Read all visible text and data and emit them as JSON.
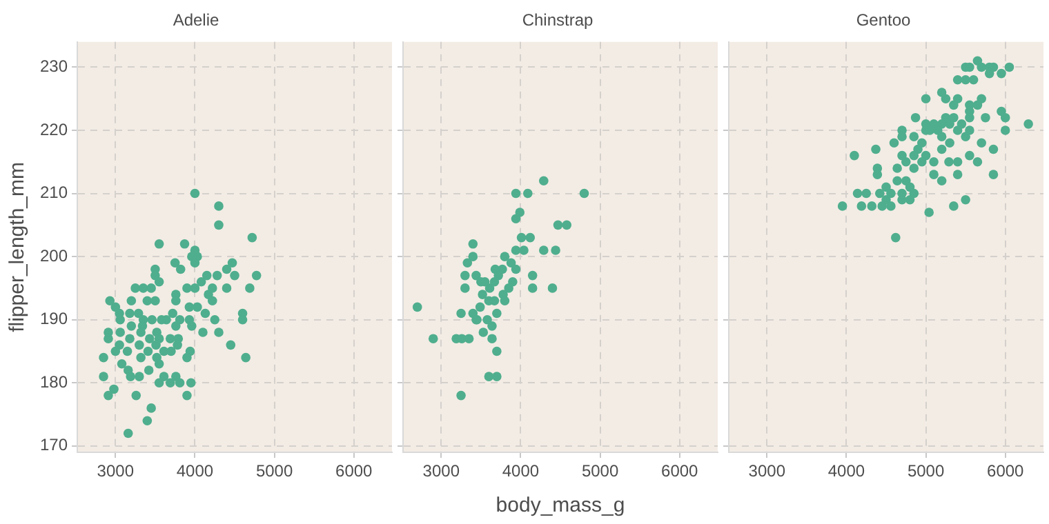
{
  "chart_data": [
    {
      "type": "scatter",
      "title": "Adelie",
      "ylabel": "flipper_length_mm",
      "xlim": [
        2520,
        6480
      ],
      "ylim": [
        169,
        234
      ],
      "xticks": [
        3000,
        4000,
        5000,
        6000
      ],
      "yticks": [
        170,
        180,
        190,
        200,
        210,
        220,
        230
      ],
      "grid": true,
      "marker": "circle",
      "color": "#4fae8e",
      "x": [
        4000,
        4300,
        4300,
        4720,
        3550,
        3870,
        4000,
        4030,
        3960,
        4000,
        3750,
        3820,
        3500,
        4470,
        4400,
        4775,
        4500,
        4150,
        4280,
        4690,
        3550,
        3500,
        4000,
        3900,
        4400,
        4220,
        3250,
        3350,
        3450,
        4080,
        4170,
        3760,
        4220,
        3400,
        3500,
        3200,
        2930,
        3000,
        3760,
        3930,
        4030,
        3050,
        3180,
        3290,
        3640,
        3720,
        3810,
        3930,
        4250,
        4600,
        4600,
        4130,
        3060,
        3350,
        3580,
        3460,
        3200,
        3340,
        3760,
        3960,
        2910,
        3060,
        3320,
        3520,
        4100,
        4300,
        2910,
        3180,
        3430,
        3550,
        3690,
        3790,
        3050,
        3300,
        3510,
        3780,
        4450,
        3000,
        3150,
        3410,
        3610,
        3700,
        3940,
        2850,
        3320,
        3520,
        3900,
        4640,
        3080,
        3550,
        3160,
        3420,
        3190,
        2850,
        3300,
        3610,
        3760,
        3550,
        3690,
        3810,
        3950,
        2980,
        2910,
        3260,
        3900,
        3450,
        3400,
        3160
      ],
      "values": [
        210,
        208,
        205,
        203,
        202,
        202,
        201,
        200,
        200,
        199,
        199,
        198,
        198,
        199,
        198,
        197,
        197,
        197,
        197,
        195,
        196,
        197,
        195,
        195,
        195,
        195,
        195,
        195,
        195,
        196,
        194,
        194,
        193,
        193,
        193,
        193,
        193,
        192,
        193,
        192,
        192,
        191,
        191,
        191,
        190,
        191,
        190,
        190,
        190,
        191,
        190,
        191,
        190,
        190,
        190,
        190,
        189,
        189,
        189,
        189,
        188,
        188,
        188,
        188,
        188,
        188,
        187,
        187,
        187,
        187,
        187,
        187,
        186,
        186,
        186,
        186,
        186,
        185,
        185,
        185,
        185,
        185,
        185,
        184,
        184,
        184,
        184,
        184,
        183,
        183,
        182,
        182,
        181,
        181,
        181,
        181,
        181,
        180,
        180,
        180,
        180,
        179,
        178,
        178,
        178,
        176,
        174,
        172
      ]
    },
    {
      "type": "scatter",
      "title": "Chinstrap",
      "xlabel": "body_mass_g",
      "xlim": [
        2520,
        6480
      ],
      "ylim": [
        169,
        234
      ],
      "xticks": [
        3000,
        4000,
        5000,
        6000
      ],
      "yticks": [
        170,
        180,
        190,
        200,
        210,
        220,
        230
      ],
      "grid": true,
      "marker": "circle",
      "tick_labels": "x",
      "color": "#4fae8e",
      "x": [
        4290,
        3940,
        4090,
        4800,
        3990,
        3940,
        4470,
        4580,
        4010,
        4120,
        3400,
        3940,
        4040,
        4290,
        4440,
        3400,
        3800,
        3330,
        3880,
        3680,
        3770,
        3940,
        3300,
        3440,
        3720,
        4150,
        3500,
        3550,
        3670,
        3900,
        3610,
        3300,
        3850,
        4150,
        4400,
        3520,
        3780,
        3600,
        3670,
        3800,
        3490,
        2700,
        3250,
        3400,
        3700,
        3450,
        3440,
        3580,
        3640,
        3530,
        2900,
        3190,
        3260,
        3350,
        3640,
        3700,
        3600,
        3700,
        3250
      ],
      "values": [
        212,
        210,
        210,
        210,
        207,
        206,
        205,
        205,
        203,
        203,
        202,
        201,
        201,
        201,
        201,
        200,
        200,
        199,
        199,
        198,
        198,
        198,
        197,
        197,
        197,
        197,
        196,
        196,
        196,
        196,
        195,
        195,
        195,
        195,
        195,
        194,
        194,
        193,
        193,
        193,
        192,
        192,
        191,
        191,
        191,
        190,
        190,
        190,
        189,
        188,
        187,
        187,
        187,
        187,
        187,
        185,
        181,
        181,
        178
      ]
    },
    {
      "type": "scatter",
      "title": "Gentoo",
      "xlim": [
        2520,
        6480
      ],
      "ylim": [
        169,
        234
      ],
      "xticks": [
        3000,
        4000,
        5000,
        6000
      ],
      "yticks": [
        170,
        180,
        190,
        200,
        210,
        220,
        230
      ],
      "grid": true,
      "marker": "circle",
      "tick_labels": "x",
      "color": "#4fae8e",
      "x": [
        5650,
        5500,
        5550,
        5700,
        5800,
        5850,
        6050,
        5800,
        5950,
        5400,
        5500,
        5600,
        5200,
        5000,
        5250,
        5400,
        5700,
        5350,
        5550,
        5650,
        5550,
        5950,
        4870,
        5250,
        5350,
        5550,
        5750,
        6000,
        6290,
        5000,
        5100,
        5200,
        5300,
        5450,
        4700,
        5000,
        5050,
        5150,
        5400,
        5550,
        6000,
        4700,
        4850,
        5200,
        5500,
        4600,
        4950,
        5300,
        5700,
        4370,
        4900,
        5200,
        5850,
        4100,
        4700,
        4850,
        5000,
        5550,
        4750,
        4950,
        5100,
        5290,
        5400,
        5650,
        4390,
        4640,
        4850,
        4390,
        5100,
        5400,
        5850,
        4640,
        4750,
        5200,
        4500,
        4800,
        4140,
        4250,
        4420,
        4560,
        4700,
        4850,
        4500,
        4700,
        4800,
        3950,
        4190,
        4320,
        4450,
        4560,
        5350,
        5500,
        5040,
        4620
      ],
      "values": [
        231,
        230,
        230,
        230,
        230,
        230,
        230,
        229,
        229,
        228,
        228,
        228,
        226,
        225,
        225,
        225,
        225,
        224,
        224,
        224,
        223,
        223,
        222,
        222,
        222,
        222,
        222,
        222,
        221,
        221,
        221,
        221,
        221,
        221,
        220,
        220,
        220,
        220,
        220,
        220,
        220,
        219,
        219,
        219,
        219,
        218,
        218,
        218,
        218,
        217,
        217,
        217,
        217,
        216,
        216,
        216,
        216,
        216,
        215,
        215,
        215,
        215,
        215,
        215,
        214,
        214,
        214,
        213,
        213,
        213,
        213,
        212,
        212,
        212,
        211,
        211,
        210,
        210,
        210,
        210,
        210,
        210,
        209,
        209,
        209,
        208,
        208,
        208,
        208,
        208,
        208,
        209,
        207,
        203
      ]
    }
  ]
}
